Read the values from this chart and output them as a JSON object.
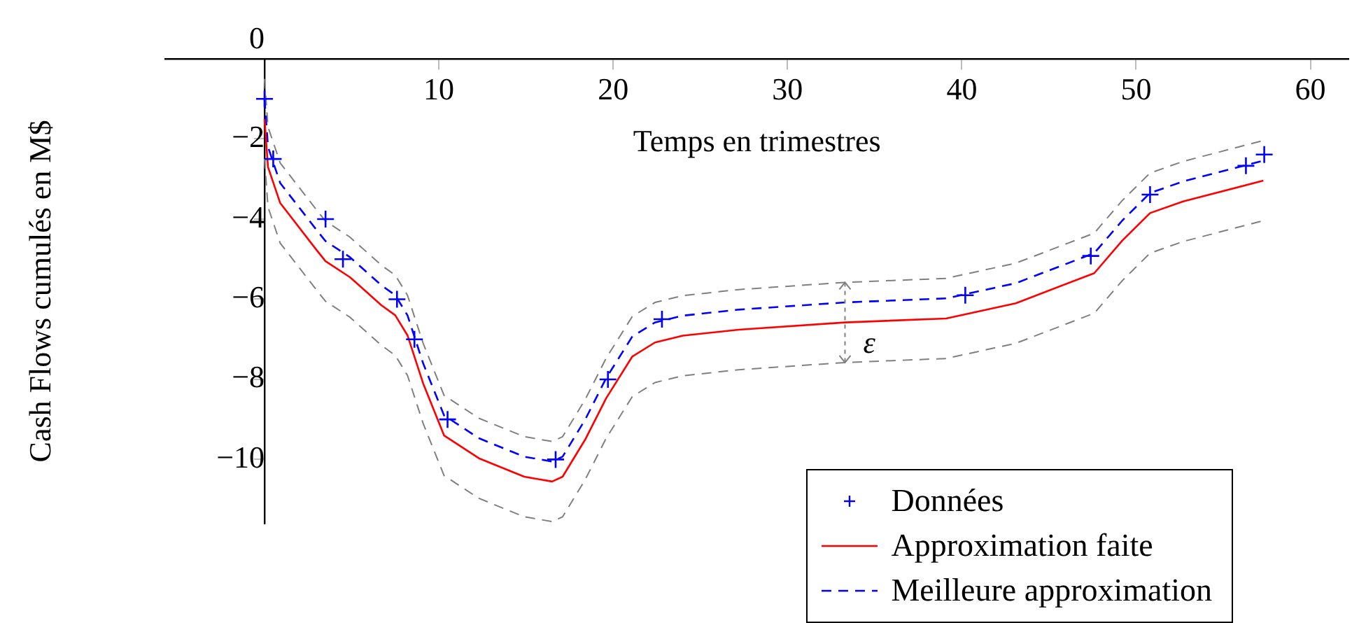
{
  "chart_data": {
    "type": "line",
    "xlabel": "Temps en trimestres",
    "ylabel": "Cash Flows cumulés en M$",
    "xlim": [
      -5.7,
      62.2
    ],
    "xticks": [
      {
        "value": 0,
        "label": null
      },
      10,
      20,
      30,
      40,
      50,
      60
    ],
    "ylim": [
      -11.6,
      0
    ],
    "yticks": [
      0,
      -2,
      -4,
      -6,
      -8,
      -10
    ],
    "grid": false,
    "legend": "bottom right",
    "annotations": [
      {
        "text": "ε",
        "x": 33.3,
        "y": -6.58
      }
    ],
    "series": [
      {
        "name": "Données",
        "type": "scatter",
        "marker": "cross",
        "color": "#0000ff",
        "x": [
          0,
          0.5,
          3.5,
          4.5,
          7.6,
          8.6,
          10.5,
          16.7,
          19.7,
          22.8,
          40.2,
          47.4,
          50.8,
          56.3,
          57.35
        ],
        "values": [
          -1,
          -2.5,
          -4,
          -5,
          -6,
          -7,
          -9,
          -10,
          -8,
          -6.5,
          -5.9,
          -4.92,
          -3.39,
          -2.67,
          -2.39
        ]
      },
      {
        "name": "Approximation faite",
        "line_style": "solid",
        "color": "#ff0000",
        "x": [
          0,
          0.2,
          0.9,
          3,
          3.5,
          4.9,
          6.7,
          7.5,
          8.2,
          9.1,
          10.3,
          12.3,
          14.9,
          16.5,
          17.1,
          18.4,
          19.6,
          21.1,
          22.4,
          24,
          27.2,
          33.3,
          39.1,
          43.1,
          47.6,
          49.2,
          50.8,
          52.7,
          57.3
        ],
        "values": [
          -1.5,
          -2.7,
          -3.6,
          -4.78,
          -5.05,
          -5.45,
          -6.15,
          -6.4,
          -6.9,
          -8.1,
          -9.4,
          -9.97,
          -10.43,
          -10.55,
          -10.43,
          -9.5,
          -8.47,
          -7.43,
          -7.08,
          -6.91,
          -6.76,
          -6.58,
          -6.48,
          -6.1,
          -5.35,
          -4.54,
          -3.85,
          -3.56,
          -3.04
        ]
      },
      {
        "name": "Meilleure approximation",
        "line_style": "dashed",
        "color": "#0000ff",
        "x": [
          0,
          0.2,
          0.9,
          3,
          3.5,
          4.9,
          6.7,
          7.5,
          8.2,
          9.1,
          10.3,
          12.3,
          14.9,
          16.5,
          17.1,
          18.4,
          19.6,
          21.1,
          22.4,
          24,
          27.2,
          33.3,
          39.1,
          43.1,
          47.6,
          49.2,
          50.8,
          52.7,
          57.3
        ],
        "values": [
          -1,
          -2.2,
          -3.1,
          -4.28,
          -4.55,
          -4.95,
          -5.65,
          -5.9,
          -6.4,
          -7.6,
          -8.9,
          -9.47,
          -9.93,
          -10.05,
          -9.93,
          -9,
          -7.97,
          -6.93,
          -6.58,
          -6.41,
          -6.26,
          -6.08,
          -5.98,
          -5.6,
          -4.85,
          -4.04,
          -3.35,
          -3.06,
          -2.54
        ]
      },
      {
        "line_style": "dashed",
        "color": "#808080",
        "x": [
          0,
          0.2,
          0.9,
          3,
          3.5,
          4.9,
          6.7,
          7.5,
          8.2,
          9.1,
          10.3,
          12.3,
          14.9,
          16.5,
          17.1,
          18.4,
          19.6,
          21.1,
          22.4,
          24,
          27.2,
          33.3,
          39.1,
          43.1,
          47.6,
          49.2,
          50.8,
          52.7,
          57.3
        ],
        "values": [
          -0.5,
          -1.7,
          -2.6,
          -3.78,
          -4.05,
          -4.45,
          -5.15,
          -5.4,
          -5.9,
          -7.1,
          -8.4,
          -8.97,
          -9.43,
          -9.55,
          -9.43,
          -8.5,
          -7.47,
          -6.43,
          -6.08,
          -5.91,
          -5.76,
          -5.58,
          -5.48,
          -5.1,
          -4.35,
          -3.54,
          -2.85,
          -2.56,
          -2.04
        ]
      },
      {
        "line_style": "dashed",
        "color": "#808080",
        "x": [
          0,
          0.2,
          0.9,
          3,
          3.5,
          4.9,
          6.7,
          7.5,
          8.2,
          9.1,
          10.3,
          12.3,
          14.9,
          16.5,
          17.1,
          18.4,
          19.6,
          21.1,
          22.4,
          24,
          27.2,
          33.3,
          39.1,
          43.1,
          47.6,
          49.2,
          50.8,
          52.7,
          57.3
        ],
        "values": [
          -2.5,
          -3.7,
          -4.6,
          -5.78,
          -6.05,
          -6.45,
          -7.15,
          -7.4,
          -7.9,
          -9.1,
          -10.4,
          -10.97,
          -11.43,
          -11.55,
          -11.43,
          -10.5,
          -9.47,
          -8.43,
          -8.08,
          -7.91,
          -7.76,
          -7.58,
          -7.48,
          -7.1,
          -6.35,
          -5.54,
          -4.85,
          -4.56,
          -4.04
        ]
      }
    ]
  }
}
